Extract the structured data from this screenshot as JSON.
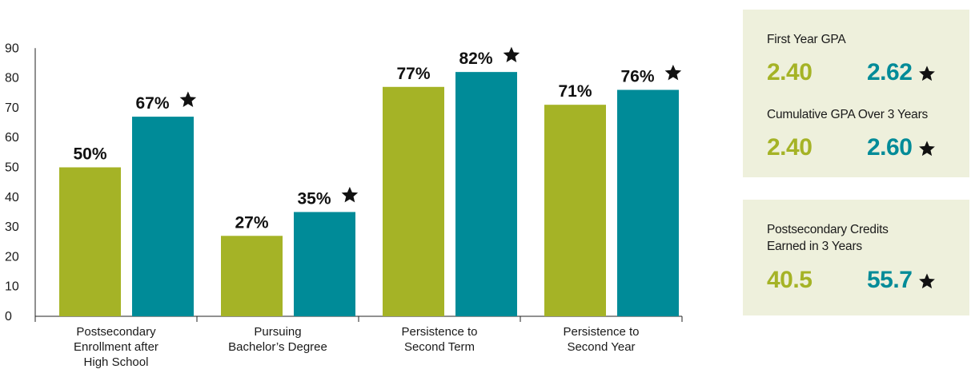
{
  "colors": {
    "series_a": "#a5b326",
    "series_b": "#008b98",
    "panel_bg": "#eef0dc",
    "text": "#1a1a1a"
  },
  "chart_data": {
    "type": "bar",
    "categories": [
      [
        "Postsecondary",
        "Enrollment after",
        "High School"
      ],
      [
        "Pursuing",
        "Bachelor’s Degree"
      ],
      [
        "Persistence to",
        "Second Term"
      ],
      [
        "Persistence to",
        "Second Year"
      ]
    ],
    "series": [
      {
        "values": [
          50,
          27,
          77,
          71
        ],
        "labels": [
          "50%",
          "27%",
          "77%",
          "71%"
        ],
        "color": "#a5b326",
        "starred": false
      },
      {
        "values": [
          67,
          35,
          82,
          76
        ],
        "labels": [
          "67%",
          "35%",
          "82%",
          "76%"
        ],
        "color": "#008b98",
        "starred": true
      }
    ],
    "yticks": [
      "0",
      "10",
      "20",
      "30",
      "40",
      "50",
      "60",
      "70",
      "80",
      "90"
    ],
    "ylim": [
      0,
      90
    ],
    "grid": false,
    "title": "",
    "xlabel": "",
    "ylabel": ""
  },
  "panels": {
    "first_year_gpa": {
      "title": "First Year GPA",
      "value_a": "2.40",
      "value_b": "2.62"
    },
    "cumulative_gpa": {
      "title": "Cumulative GPA Over 3 Years",
      "value_a": "2.40",
      "value_b": "2.60"
    },
    "credits": {
      "title_line1": "Postsecondary Credits",
      "title_line2": "Earned in 3 Years",
      "value_a": "40.5",
      "value_b": "55.7"
    }
  }
}
